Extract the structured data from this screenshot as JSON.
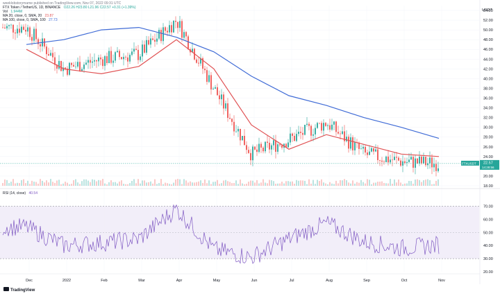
{
  "header": {
    "published_by": "weeklobstorymame published on TradingView.com, Nov 07, 2022 09:31 UTC",
    "symbol_line": "FTX Token / TetherUS, 1D, BINANCE",
    "ohlc": "O22.26 H23.80 L21.96 C22.57 +0.31 (+1.39%)",
    "vol_label": "Vol",
    "vol_value": "1.944M",
    "ma20_label": "MA 20, close, 0, SMA, 20",
    "ma20_value": "23.87",
    "ma100_label": "MA 100, close, 0, SMA, 100",
    "ma100_value": "27.73"
  },
  "price_axis": {
    "currency": "USDT",
    "ticks": [
      "54.00",
      "52.00",
      "50.00",
      "48.00",
      "46.00",
      "44.00",
      "42.00",
      "40.00",
      "38.00",
      "36.00",
      "34.00",
      "32.00",
      "30.00",
      "28.00",
      "26.00",
      "24.00",
      "22.00",
      "20.00",
      "18.00"
    ],
    "last_label_symbol": "FTXUSDT",
    "last_price": "22.57",
    "countdown": "14:28:56"
  },
  "rsi": {
    "label": "RSI (14, close)",
    "value": "40.54",
    "ticks": [
      "70.00",
      "60.00",
      "50.00",
      "40.00",
      "30.00",
      "20.00"
    ]
  },
  "time_axis": {
    "labels": [
      "Dec",
      "2022",
      "Feb",
      "Mar",
      "Apr",
      "May",
      "Jun",
      "Jul",
      "Aug",
      "Sep",
      "Oct",
      "Nov"
    ]
  },
  "brand": "TradingView",
  "colors": {
    "up": "#26a69a",
    "down": "#ef5350",
    "ma20": "#e05254",
    "ma100": "#3f6bd6",
    "rsi_line": "#7e57c2",
    "rsi_band": "#ede7f6",
    "last_price_bg": "#26a69a"
  },
  "chart_data": {
    "type": "line",
    "title": "",
    "x": [
      "Dec",
      "2022",
      "Feb",
      "Mar",
      "Apr",
      "May",
      "Jun",
      "Jul",
      "Aug",
      "Sep",
      "Oct",
      "Nov"
    ],
    "ylim": [
      18,
      55
    ],
    "series": [
      {
        "name": "MA 20",
        "values": [
          46.0,
          42.0,
          41.0,
          42.5,
          48.0,
          42.0,
          30.5,
          25.5,
          28.5,
          26.5,
          24.5,
          24.0
        ]
      },
      {
        "name": "MA 100",
        "values": [
          47.0,
          48.0,
          50.0,
          50.5,
          48.5,
          45.5,
          40.5,
          36.5,
          34.5,
          32.0,
          30.0,
          27.73
        ]
      }
    ],
    "close": [
      50.5,
      42.0,
      44.0,
      45.0,
      52.0,
      38.0,
      24.5,
      27.5,
      31.0,
      24.5,
      23.0,
      22.57
    ],
    "rsi_ylim": [
      20,
      75
    ],
    "rsi_values": [
      54,
      40,
      42,
      45,
      68,
      37,
      31,
      45,
      57,
      43,
      38,
      40.54
    ]
  }
}
